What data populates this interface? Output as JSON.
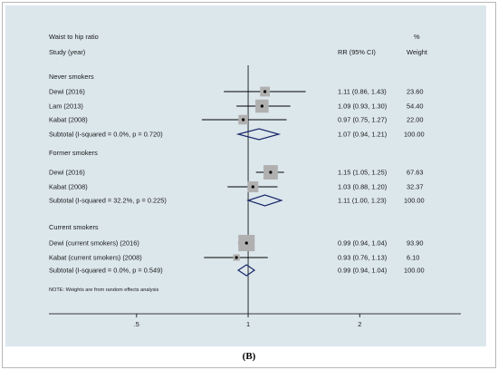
{
  "panel_label": "(B)",
  "chart_data": {
    "type": "forest",
    "title": "Waist to hip ratio",
    "columns": {
      "study": "Study (year)",
      "rr": "RR (95% CI)",
      "weight_top": "%",
      "weight": "Weight"
    },
    "x_ticks": [
      ".5",
      "1",
      "2"
    ],
    "x_tick_values": [
      0.5,
      1,
      2
    ],
    "x_scale": "log",
    "x_range": [
      0.29,
      3.75
    ],
    "null_line": 1,
    "note": "NOTE: Weights are from random effects analysis",
    "colors": {
      "plot_bg": "#dce7ec",
      "panel_bg": "#ffffff",
      "box": "#b0b0b0",
      "diamond": "#1b2a6b",
      "line": "#000000"
    },
    "groups": [
      {
        "name": "Never smokers",
        "studies": [
          {
            "label": "Dewi (2016)",
            "rr": 1.11,
            "lo": 0.86,
            "hi": 1.43,
            "rr_text": "1.11 (0.86, 1.43)",
            "weight": "23.60",
            "weight_value": 23.6
          },
          {
            "label": "Lam (2013)",
            "rr": 1.09,
            "lo": 0.93,
            "hi": 1.3,
            "rr_text": "1.09 (0.93, 1.30)",
            "weight": "54.40",
            "weight_value": 54.4
          },
          {
            "label": "Kabat (2008)",
            "rr": 0.97,
            "lo": 0.75,
            "hi": 1.27,
            "rr_text": "0.97 (0.75, 1.27)",
            "weight": "22.00",
            "weight_value": 22.0
          }
        ],
        "subtotal": {
          "label": "Subtotal  (I-squared = 0.0%, p = 0.720)",
          "rr": 1.07,
          "lo": 0.94,
          "hi": 1.21,
          "rr_text": "1.07 (0.94, 1.21)",
          "weight": "100.00"
        }
      },
      {
        "name": "Former smokers",
        "studies": [
          {
            "label": "Dewi (2016)",
            "rr": 1.15,
            "lo": 1.05,
            "hi": 1.25,
            "rr_text": "1.15 (1.05, 1.25)",
            "weight": "67.63",
            "weight_value": 67.63
          },
          {
            "label": "Kabat (2008)",
            "rr": 1.03,
            "lo": 0.88,
            "hi": 1.2,
            "rr_text": "1.03 (0.88, 1.20)",
            "weight": "32.37",
            "weight_value": 32.37
          }
        ],
        "subtotal": {
          "label": "Subtotal  (I-squared = 32.2%, p = 0.225)",
          "rr": 1.11,
          "lo": 1.0,
          "hi": 1.23,
          "rr_text": "1.11 (1.00, 1.23)",
          "weight": "100.00"
        }
      },
      {
        "name": "Current smokers",
        "studies": [
          {
            "label": "Dewi (current smokers) (2016)",
            "rr": 0.99,
            "lo": 0.94,
            "hi": 1.04,
            "rr_text": "0.99 (0.94, 1.04)",
            "weight": "93.90",
            "weight_value": 93.9
          },
          {
            "label": "Kabat (current smokers) (2008)",
            "rr": 0.93,
            "lo": 0.76,
            "hi": 1.13,
            "rr_text": "0.93 (0.76, 1.13)",
            "weight": "6.10",
            "weight_value": 6.1
          }
        ],
        "subtotal": {
          "label": "Subtotal  (I-squared = 0.0%, p = 0.549)",
          "rr": 0.99,
          "lo": 0.94,
          "hi": 1.04,
          "rr_text": "0.99 (0.94, 1.04)",
          "weight": "100.00"
        }
      }
    ]
  }
}
